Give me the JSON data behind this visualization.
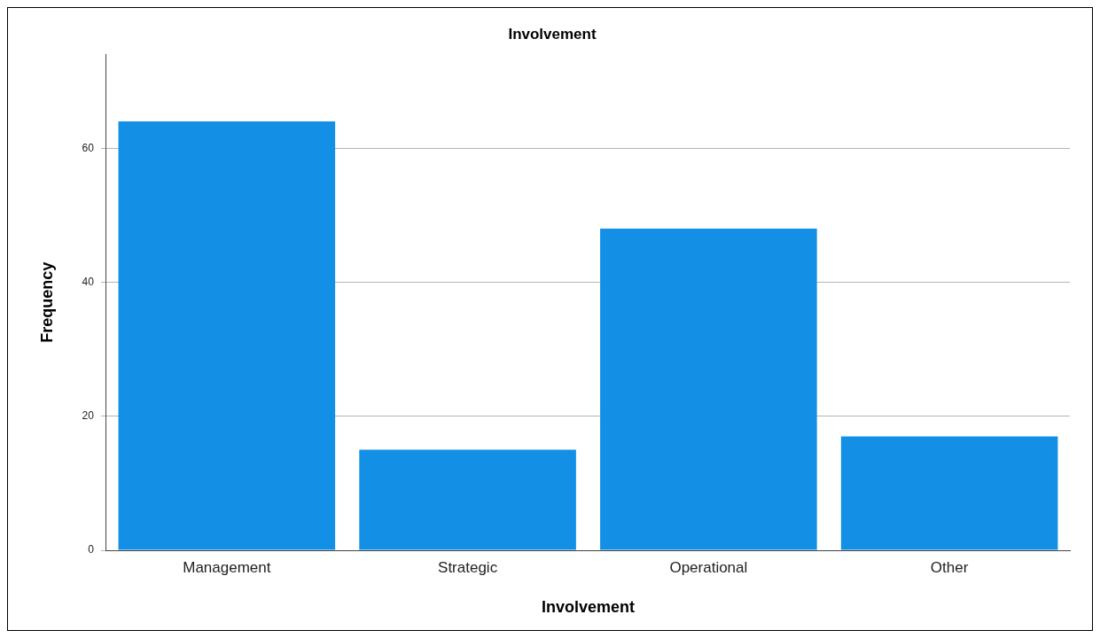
{
  "chart_data": {
    "type": "bar",
    "title": "Involvement",
    "xlabel": "Involvement",
    "ylabel": "Frequency",
    "categories": [
      "Management",
      "Strategic",
      "Operational",
      "Other"
    ],
    "values": [
      64,
      15,
      48,
      17
    ],
    "color": "#1390e6",
    "ylim": [
      0,
      74
    ],
    "yticks": [
      0,
      20,
      40,
      60
    ],
    "grid": "y",
    "legend": false
  }
}
